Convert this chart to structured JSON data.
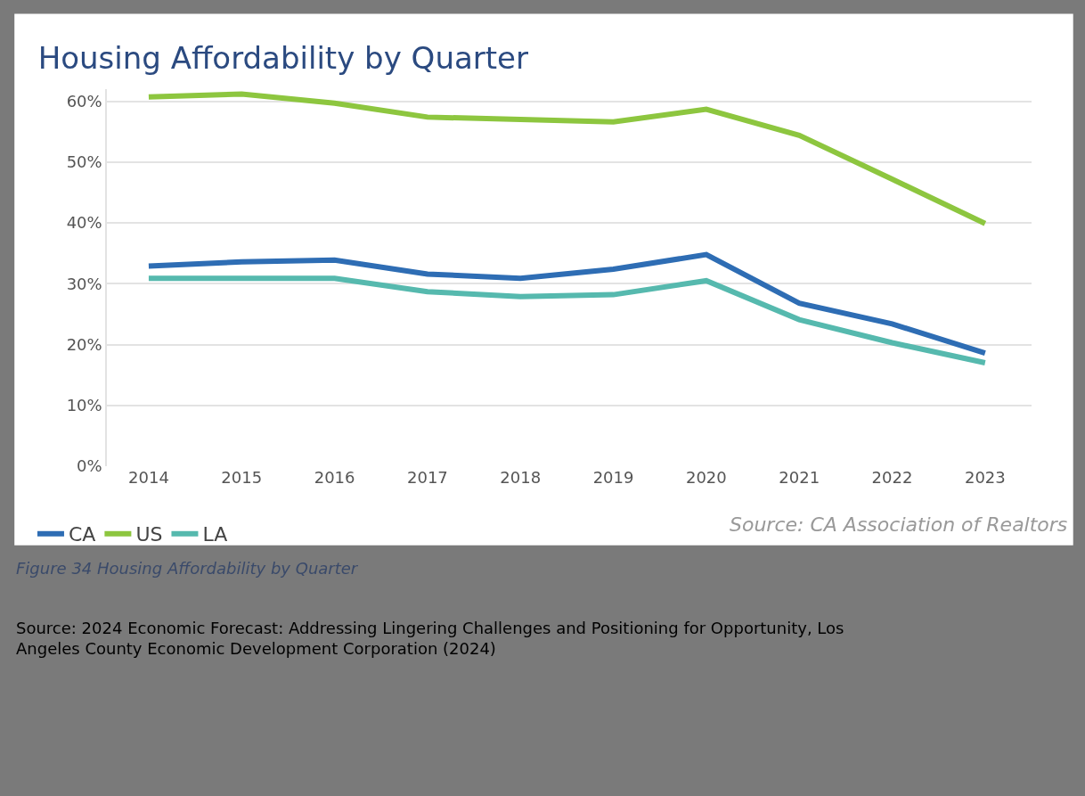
{
  "chart_data": {
    "type": "line",
    "title": "Housing Affordability by Quarter",
    "categories": [
      "2014",
      "2015",
      "2016",
      "2017",
      "2018",
      "2019",
      "2020",
      "2021",
      "2022",
      "2023"
    ],
    "series": [
      {
        "name": "CA",
        "color": "#2e6db4",
        "values": [
          32.9,
          33.6,
          33.9,
          31.6,
          30.9,
          32.4,
          34.8,
          26.8,
          23.4,
          18.6
        ]
      },
      {
        "name": "US",
        "color": "#8dc63f",
        "values": [
          60.7,
          61.2,
          59.7,
          57.4,
          57.0,
          56.6,
          58.7,
          54.4,
          47.2,
          39.9
        ]
      },
      {
        "name": "LA",
        "color": "#56b9ae",
        "values": [
          30.9,
          30.9,
          30.9,
          28.7,
          27.9,
          28.2,
          30.5,
          24.1,
          20.3,
          17.0
        ]
      }
    ],
    "ylim": [
      0,
      62
    ],
    "yticks": [
      {
        "value": 0,
        "label": "0%"
      },
      {
        "value": 10,
        "label": "10%"
      },
      {
        "value": 20,
        "label": "20%"
      },
      {
        "value": 30,
        "label": "30%"
      },
      {
        "value": 40,
        "label": "40%"
      },
      {
        "value": 50,
        "label": "50%"
      },
      {
        "value": 60,
        "label": "60%"
      }
    ],
    "grid": "y",
    "legend": "bottom left",
    "marker": "none",
    "line_style": "solid",
    "annotations": [
      "Source: CA Association of Realtors",
      "Figure 34 Housing Affordability by Quarter",
      "Source: 2024 Economic Forecast: Addressing Lingering Challenges and Positioning for Opportunity, Los Angeles County Economic Development Corporation (2024)"
    ]
  }
}
